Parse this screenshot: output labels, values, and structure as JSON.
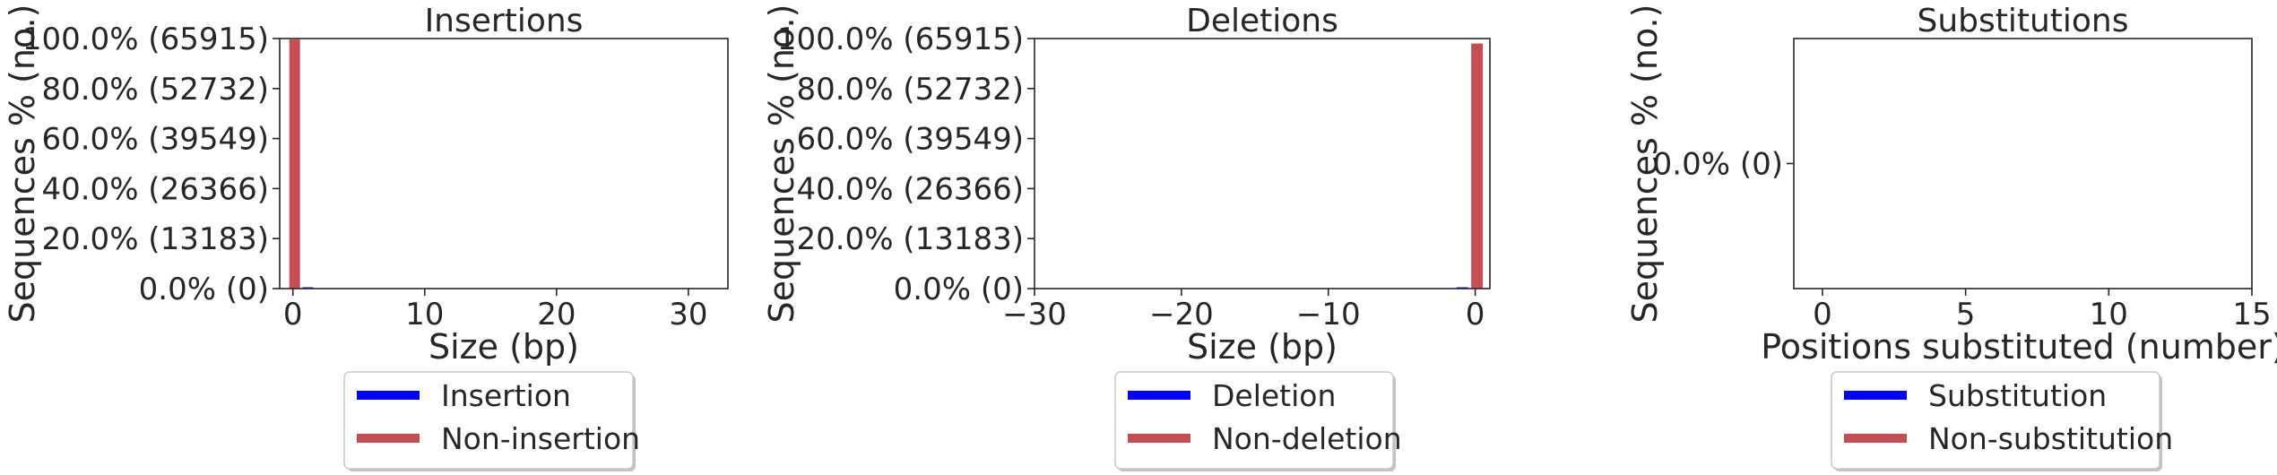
{
  "colors": {
    "blue": "#0000ff",
    "red": "#c44e52",
    "axis": "#262626",
    "legend_border": "#c8c8c8"
  },
  "chart_data": [
    {
      "type": "bar",
      "title": "Insertions",
      "xlabel": "Size (bp)",
      "ylabel": "Sequences % (no.)",
      "xlim": [
        -1,
        33
      ],
      "ylim": [
        0,
        1.0
      ],
      "x_ticks": [
        0,
        10,
        20,
        30
      ],
      "x_tick_labels": [
        "0",
        "10",
        "20",
        "30"
      ],
      "y_ticks": [
        0.0,
        0.2,
        0.4,
        0.6,
        0.8,
        1.0
      ],
      "y_tick_labels": [
        "0.0% (0)",
        "20.0% (13183)",
        "40.0% (26366)",
        "60.0% (39549)",
        "80.0% (52732)",
        "100.0% (65915)"
      ],
      "series": [
        {
          "name": "Insertion",
          "color": "#0000ff",
          "x": [
            1
          ],
          "values": [
            0.004
          ]
        },
        {
          "name": "Non-insertion",
          "color": "#c44e52",
          "x": [
            0
          ],
          "values": [
            0.996
          ]
        }
      ],
      "legend": [
        {
          "label": "Insertion",
          "color": "#0000ff"
        },
        {
          "label": "Non-insertion",
          "color": "#c44e52"
        }
      ],
      "legend_placement": "below"
    },
    {
      "type": "bar",
      "title": "Deletions",
      "xlabel": "Size (bp)",
      "ylabel": "Sequences % (no.)",
      "xlim": [
        -30,
        1
      ],
      "ylim": [
        0,
        1.0
      ],
      "x_ticks": [
        -30,
        -20,
        -10,
        0
      ],
      "x_tick_labels": [
        "−30",
        "−20",
        "−10",
        "0"
      ],
      "y_ticks": [
        0.0,
        0.2,
        0.4,
        0.6,
        0.8,
        1.0
      ],
      "y_tick_labels": [
        "0.0% (0)",
        "20.0% (13183)",
        "40.0% (26366)",
        "60.0% (39549)",
        "80.0% (52732)",
        "100.0% (65915)"
      ],
      "series": [
        {
          "name": "Deletion",
          "color": "#0000ff",
          "x": [
            -1
          ],
          "values": [
            0.0
          ]
        },
        {
          "name": "Non-deletion",
          "color": "#c44e52",
          "x": [
            0
          ],
          "values": [
            0.98
          ]
        }
      ],
      "legend": [
        {
          "label": "Deletion",
          "color": "#0000ff"
        },
        {
          "label": "Non-deletion",
          "color": "#c44e52"
        }
      ],
      "legend_placement": "below"
    },
    {
      "type": "bar",
      "title": "Substitutions",
      "xlabel": "Positions substituted (number)",
      "ylabel": "Sequences % (no.)",
      "xlim": [
        -1,
        15
      ],
      "ylim": [
        -1,
        1
      ],
      "x_ticks": [
        0,
        5,
        10,
        15
      ],
      "x_tick_labels": [
        "0",
        "5",
        "10",
        "15"
      ],
      "y_ticks": [
        0
      ],
      "y_tick_labels": [
        "0.0% (0)"
      ],
      "series": [
        {
          "name": "Substitution",
          "color": "#0000ff",
          "x": [],
          "values": []
        },
        {
          "name": "Non-substitution",
          "color": "#c44e52",
          "x": [],
          "values": []
        }
      ],
      "legend": [
        {
          "label": "Substitution",
          "color": "#0000ff"
        },
        {
          "label": "Non-substitution",
          "color": "#c44e52"
        }
      ],
      "legend_placement": "below"
    }
  ]
}
